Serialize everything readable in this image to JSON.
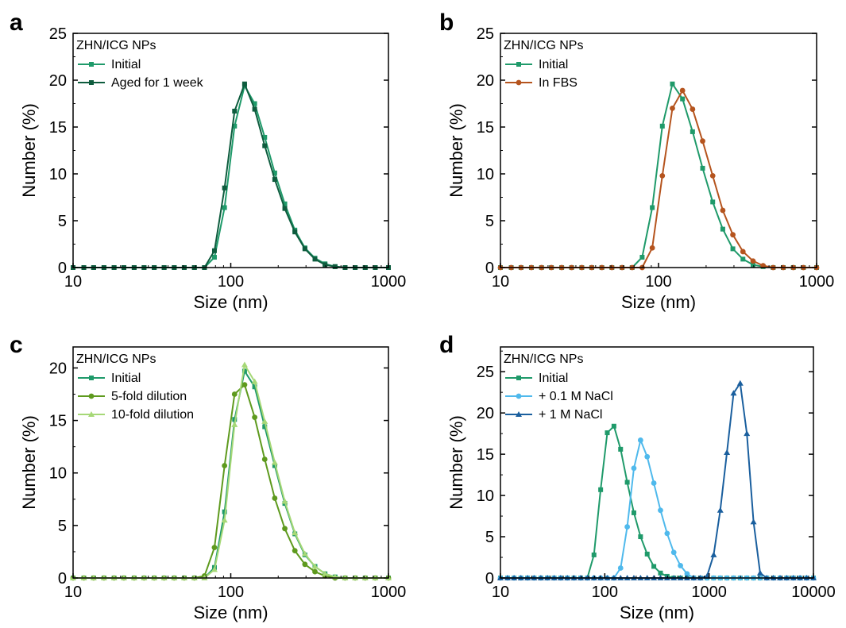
{
  "chart_data": [
    {
      "panel": "a",
      "type": "line",
      "xscale": "log",
      "xlim": [
        10,
        1000
      ],
      "ylim": [
        0,
        25
      ],
      "xticks": [
        "10",
        "100",
        "1000"
      ],
      "yticks": [
        "0",
        "5",
        "10",
        "15",
        "20",
        "25"
      ],
      "xlabel": "Size (nm)",
      "ylabel": "Number (%)",
      "legend_title": "ZHN/ICG NPs",
      "legend_position": "top-left",
      "series": [
        {
          "name": "Initial",
          "color": "#1f9a6a",
          "marker": "square",
          "x": [
            10,
            11.7,
            13.5,
            15.7,
            18.2,
            21.0,
            24.4,
            28.2,
            32.7,
            37.8,
            43.8,
            50.7,
            58.8,
            68.1,
            78.8,
            91.3,
            105.7,
            122.4,
            141.8,
            164.2,
            190.1,
            220.2,
            255.0,
            295.3,
            342.0,
            396.1,
            458.7,
            531.2,
            615.1,
            712.4,
            825.0,
            1000
          ],
          "y": [
            0,
            0,
            0,
            0,
            0,
            0,
            0,
            0,
            0,
            0,
            0,
            0,
            0,
            0,
            1.1,
            6.4,
            15.1,
            19.4,
            17.5,
            13.9,
            10.1,
            6.8,
            4.0,
            2.1,
            1.0,
            0.4,
            0.1,
            0,
            0,
            0,
            0,
            0
          ]
        },
        {
          "name": "Aged for 1 week",
          "color": "#0e5c3e",
          "marker": "square",
          "x": [
            10,
            11.7,
            13.5,
            15.7,
            18.2,
            21.0,
            24.4,
            28.2,
            32.7,
            37.8,
            43.8,
            50.7,
            58.8,
            68.1,
            78.8,
            91.3,
            105.7,
            122.4,
            141.8,
            164.2,
            190.1,
            220.2,
            255.0,
            295.3,
            342.0,
            396.1,
            458.7,
            531.2,
            615.1,
            712.4,
            825.0,
            1000
          ],
          "y": [
            0,
            0,
            0,
            0,
            0,
            0,
            0,
            0,
            0,
            0,
            0,
            0,
            0,
            0,
            1.8,
            8.5,
            16.7,
            19.6,
            16.9,
            13.0,
            9.4,
            6.3,
            3.8,
            2.0,
            0.9,
            0.3,
            0.1,
            0,
            0,
            0,
            0,
            0
          ]
        }
      ]
    },
    {
      "panel": "b",
      "type": "line",
      "xscale": "log",
      "xlim": [
        10,
        1000
      ],
      "ylim": [
        0,
        25
      ],
      "xticks": [
        "10",
        "100",
        "1000"
      ],
      "yticks": [
        "0",
        "5",
        "10",
        "15",
        "20",
        "25"
      ],
      "xlabel": "Size (nm)",
      "ylabel": "Number (%)",
      "legend_title": "ZHN/ICG NPs",
      "legend_position": "top-left",
      "series": [
        {
          "name": "Initial",
          "color": "#1f9a6a",
          "marker": "square",
          "x": [
            10,
            11.7,
            13.5,
            15.7,
            18.2,
            21.0,
            24.4,
            28.2,
            32.7,
            37.8,
            43.8,
            50.7,
            58.8,
            68.1,
            78.8,
            91.3,
            105.7,
            122.4,
            141.8,
            164.2,
            190.1,
            220.2,
            255.0,
            295.3,
            342.0,
            396.1,
            458.7,
            531.2,
            615.1,
            712.4,
            825.0,
            1000
          ],
          "y": [
            0,
            0,
            0,
            0,
            0,
            0,
            0,
            0,
            0,
            0,
            0,
            0,
            0,
            0,
            1.1,
            6.4,
            15.1,
            19.6,
            18.0,
            14.5,
            10.6,
            7.0,
            4.1,
            2.0,
            0.9,
            0.3,
            0.1,
            0,
            0,
            0,
            0,
            0
          ]
        },
        {
          "name": "In FBS",
          "color": "#b5541e",
          "marker": "circle",
          "x": [
            10,
            11.7,
            13.5,
            15.7,
            18.2,
            21.0,
            24.4,
            28.2,
            32.7,
            37.8,
            43.8,
            50.7,
            58.8,
            68.1,
            78.8,
            91.3,
            105.7,
            122.4,
            141.8,
            164.2,
            190.1,
            220.2,
            255.0,
            295.3,
            342.0,
            396.1,
            458.7,
            531.2,
            615.1,
            712.4,
            825.0,
            1000
          ],
          "y": [
            0,
            0,
            0,
            0,
            0,
            0,
            0,
            0,
            0,
            0,
            0,
            0,
            0,
            0,
            0,
            2.1,
            9.8,
            17.0,
            18.9,
            16.9,
            13.5,
            9.8,
            6.1,
            3.5,
            1.7,
            0.7,
            0.2,
            0,
            0,
            0,
            0,
            0
          ]
        }
      ]
    },
    {
      "panel": "c",
      "type": "line",
      "xscale": "log",
      "xlim": [
        10,
        1000
      ],
      "ylim": [
        0,
        22
      ],
      "xticks": [
        "10",
        "100",
        "1000"
      ],
      "yticks": [
        "0",
        "5",
        "10",
        "15",
        "20"
      ],
      "xlabel": "Size (nm)",
      "ylabel": "Number (%)",
      "legend_title": "ZHN/ICG NPs",
      "legend_position": "top-left",
      "series": [
        {
          "name": "Initial",
          "color": "#1f9a6a",
          "marker": "square",
          "x": [
            10,
            11.7,
            13.5,
            15.7,
            18.2,
            21.0,
            24.4,
            28.2,
            32.7,
            37.8,
            43.8,
            50.7,
            58.8,
            68.1,
            78.8,
            91.3,
            105.7,
            122.4,
            141.8,
            164.2,
            190.1,
            220.2,
            255.0,
            295.3,
            342.0,
            396.1,
            458.7,
            531.2,
            615.1,
            712.4,
            825.0,
            1000
          ],
          "y": [
            0,
            0,
            0,
            0,
            0,
            0,
            0,
            0,
            0,
            0,
            0,
            0,
            0,
            0,
            1.0,
            6.3,
            15.1,
            19.7,
            18.2,
            14.4,
            10.7,
            7.1,
            4.2,
            2.2,
            1.1,
            0.4,
            0.1,
            0,
            0,
            0,
            0,
            0
          ]
        },
        {
          "name": "5-fold dilution",
          "color": "#5e9a1e",
          "marker": "circle",
          "x": [
            10,
            11.7,
            13.5,
            15.7,
            18.2,
            21.0,
            24.4,
            28.2,
            32.7,
            37.8,
            43.8,
            50.7,
            58.8,
            68.1,
            78.8,
            91.3,
            105.7,
            122.4,
            141.8,
            164.2,
            190.1,
            220.2,
            255.0,
            295.3,
            342.0,
            396.1,
            458.7,
            531.2,
            615.1,
            712.4,
            825.0,
            1000
          ],
          "y": [
            0,
            0,
            0,
            0,
            0,
            0,
            0,
            0,
            0,
            0,
            0,
            0,
            0,
            0.2,
            2.9,
            10.7,
            17.5,
            18.4,
            15.3,
            11.3,
            7.6,
            4.7,
            2.6,
            1.3,
            0.6,
            0.2,
            0,
            0,
            0,
            0,
            0,
            0
          ]
        },
        {
          "name": "10-fold dilution",
          "color": "#a6d877",
          "marker": "triangle",
          "x": [
            10,
            11.7,
            13.5,
            15.7,
            18.2,
            21.0,
            24.4,
            28.2,
            32.7,
            37.8,
            43.8,
            50.7,
            58.8,
            68.1,
            78.8,
            91.3,
            105.7,
            122.4,
            141.8,
            164.2,
            190.1,
            220.2,
            255.0,
            295.3,
            342.0,
            396.1,
            458.7,
            531.2,
            615.1,
            712.4,
            825.0,
            1000
          ],
          "y": [
            0,
            0,
            0,
            0,
            0,
            0,
            0,
            0,
            0,
            0,
            0,
            0,
            0,
            0,
            0.8,
            5.5,
            14.6,
            20.3,
            18.7,
            14.9,
            11.0,
            7.3,
            4.3,
            2.3,
            1.1,
            0.4,
            0.1,
            0,
            0,
            0,
            0,
            0
          ]
        }
      ]
    },
    {
      "panel": "d",
      "type": "line",
      "xscale": "log",
      "xlim": [
        10,
        10000
      ],
      "ylim": [
        0,
        28
      ],
      "xticks": [
        "10",
        "100",
        "1000",
        "10000"
      ],
      "yticks": [
        "0",
        "5",
        "10",
        "15",
        "20",
        "25"
      ],
      "xlabel": "Size (nm)",
      "ylabel": "Number (%)",
      "legend_title": "ZHN/ICG NPs",
      "legend_position": "top-left",
      "series": [
        {
          "name": "Initial",
          "color": "#1f9a6a",
          "marker": "square",
          "x": [
            10,
            11.7,
            13.5,
            15.7,
            18.2,
            21.0,
            24.4,
            28.2,
            32.7,
            37.8,
            43.8,
            50.7,
            58.8,
            68.1,
            78.8,
            91.3,
            105.7,
            122.4,
            141.8,
            164.2,
            190.1,
            220.2,
            255.0,
            295.3,
            342.0,
            396.1,
            458.7,
            531.2,
            615.1,
            712.4,
            825.0,
            955.0,
            1106,
            1280,
            1482,
            1716,
            1987,
            2301,
            2664,
            3085,
            3572,
            4136,
            4789,
            5545,
            6421,
            7435,
            8609,
            10000
          ],
          "y": [
            0,
            0,
            0,
            0,
            0,
            0,
            0,
            0,
            0,
            0,
            0,
            0,
            0,
            0,
            2.8,
            10.7,
            17.6,
            18.4,
            15.6,
            11.6,
            7.9,
            5.0,
            2.9,
            1.4,
            0.6,
            0.2,
            0,
            0,
            0,
            0,
            0,
            0,
            0,
            0,
            0,
            0,
            0,
            0,
            0,
            0,
            0,
            0,
            0,
            0,
            0,
            0,
            0,
            0
          ]
        },
        {
          "name": "+ 0.1 M NaCl",
          "color": "#4fb9ec",
          "marker": "circle",
          "x": [
            10,
            11.7,
            13.5,
            15.7,
            18.2,
            21.0,
            24.4,
            28.2,
            32.7,
            37.8,
            43.8,
            50.7,
            58.8,
            68.1,
            78.8,
            91.3,
            105.7,
            122.4,
            141.8,
            164.2,
            190.1,
            220.2,
            255.0,
            295.3,
            342.0,
            396.1,
            458.7,
            531.2,
            615.1,
            712.4,
            825.0,
            955.0,
            1106,
            1280,
            1482,
            1716,
            1987,
            2301,
            2664,
            3085,
            3572,
            4136,
            4789,
            5545,
            6421,
            7435,
            8609,
            10000
          ],
          "y": [
            0,
            0,
            0,
            0,
            0,
            0,
            0,
            0,
            0,
            0,
            0,
            0,
            0,
            0,
            0,
            0,
            0,
            0,
            1.2,
            6.2,
            13.3,
            16.7,
            14.7,
            11.5,
            8.2,
            5.4,
            3.1,
            1.5,
            0.5,
            0,
            0,
            0,
            0,
            0,
            0,
            0,
            0,
            0,
            0,
            0,
            0,
            0,
            0,
            0,
            0,
            0,
            0,
            0
          ]
        },
        {
          "name": "+ 1 M NaCl",
          "color": "#1a5f9e",
          "marker": "triangle",
          "x": [
            10,
            11.7,
            13.5,
            15.7,
            18.2,
            21.0,
            24.4,
            28.2,
            32.7,
            37.8,
            43.8,
            50.7,
            58.8,
            68.1,
            78.8,
            91.3,
            105.7,
            122.4,
            141.8,
            164.2,
            190.1,
            220.2,
            255.0,
            295.3,
            342.0,
            396.1,
            458.7,
            531.2,
            615.1,
            712.4,
            825.0,
            955.0,
            1106,
            1280,
            1482,
            1716,
            1987,
            2301,
            2664,
            3085,
            3572,
            4136,
            4789,
            5545,
            6421,
            7435,
            8609,
            10000
          ],
          "y": [
            0,
            0,
            0,
            0,
            0,
            0,
            0,
            0,
            0,
            0,
            0,
            0,
            0,
            0,
            0,
            0,
            0,
            0,
            0,
            0,
            0,
            0,
            0,
            0,
            0,
            0,
            0,
            0,
            0,
            0,
            0,
            0.2,
            2.8,
            8.2,
            15.2,
            22.4,
            23.6,
            17.5,
            6.8,
            0.6,
            0,
            0,
            0,
            0,
            0,
            0,
            0,
            0
          ]
        }
      ]
    }
  ]
}
